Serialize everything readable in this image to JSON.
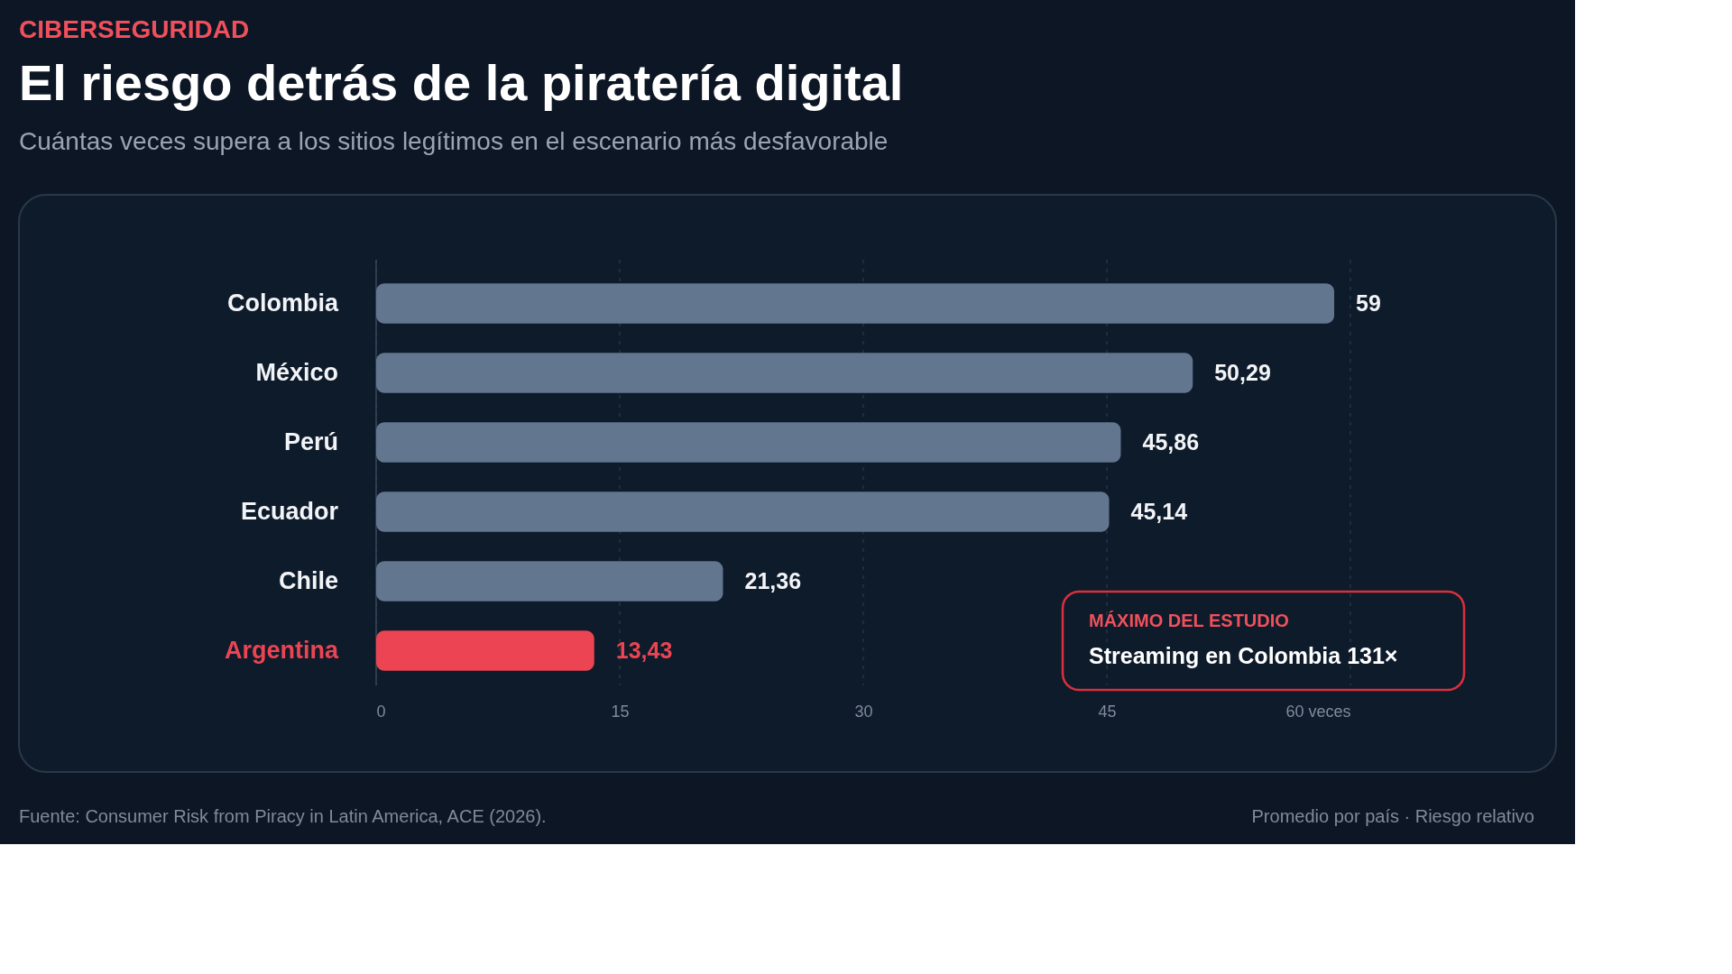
{
  "chart_data": {
    "type": "bar",
    "orientation": "horizontal",
    "title": "El riesgo detrás de la piratería digital",
    "subtitle": "Cuántas veces supera a los sitios legítimos en el escenario más desfavorable",
    "categories": [
      "Colombia",
      "México",
      "Perú",
      "Ecuador",
      "Chile",
      "Argentina"
    ],
    "values": [
      59,
      50.29,
      45.86,
      45.14,
      21.36,
      13.43
    ],
    "value_labels": [
      "59",
      "50,29",
      "45,86",
      "45,14",
      "21,36",
      "13,43"
    ],
    "colors": [
      "#62768f",
      "#62768f",
      "#62768f",
      "#62768f",
      "#62768f",
      "#ec4452"
    ],
    "xlim": [
      0,
      60
    ],
    "xticks": [
      0,
      15,
      30,
      45,
      {
        "value": 60,
        "label": "60 veces"
      }
    ],
    "grid": "x",
    "annotations": [
      "CIBERSEGURIDAD",
      "MÁXIMO DEL ESTUDIO",
      "Streaming en Colombia 131×",
      "Fuente: Consumer Risk from Piracy in Latin America, ACE (2026).",
      "Promedio por país · Riesgo relativo"
    ]
  }
}
